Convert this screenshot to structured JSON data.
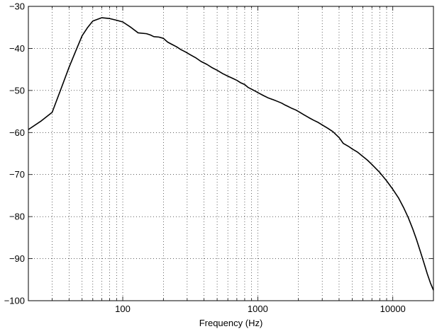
{
  "chart_data": {
    "type": "line",
    "title": "",
    "xlabel": "Frequency (Hz)",
    "ylabel": "",
    "x_scale": "log",
    "xlim": [
      20,
      20000
    ],
    "ylim": [
      -100,
      -30
    ],
    "grid": true,
    "legend": "none",
    "line_color": "#000000",
    "x_ticks": [
      100,
      1000,
      10000
    ],
    "x_tick_labels": [
      "100",
      "1000",
      "10000"
    ],
    "y_ticks": [
      -100,
      -90,
      -80,
      -70,
      -60,
      -50,
      -40,
      -30
    ],
    "y_tick_labels": [
      "−100",
      "−90",
      "−80",
      "−70",
      "−60",
      "−50",
      "−40",
      "−30"
    ],
    "series": [
      {
        "x": [
          20,
          25,
          30,
          35,
          40,
          45,
          50,
          55,
          60,
          70,
          80,
          90,
          100,
          115,
          130,
          150,
          160,
          170,
          185,
          200,
          215,
          230,
          250,
          270,
          290,
          320,
          350,
          380,
          420,
          460,
          500,
          550,
          600,
          650,
          700,
          750,
          800,
          850,
          900,
          950,
          1000,
          1100,
          1200,
          1300,
          1400,
          1500,
          1600,
          1700,
          1800,
          1900,
          2000,
          2200,
          2400,
          2600,
          2800,
          3000,
          3300,
          3600,
          4000,
          4300,
          4700,
          5000,
          5500,
          6000,
          6500,
          7000,
          8000,
          9000,
          10000,
          11000,
          12000,
          13000,
          14000,
          15000,
          16000,
          17000,
          18000,
          19000,
          20000
        ],
        "y": [
          -59.3,
          -57.2,
          -55.2,
          -49.5,
          -44.5,
          -40.5,
          -37.0,
          -35.0,
          -33.5,
          -32.7,
          -32.9,
          -33.3,
          -33.7,
          -35.0,
          -36.3,
          -36.5,
          -36.8,
          -37.2,
          -37.3,
          -37.6,
          -38.5,
          -39.0,
          -39.6,
          -40.3,
          -40.8,
          -41.6,
          -42.3,
          -43.1,
          -43.8,
          -44.6,
          -45.2,
          -46.0,
          -46.6,
          -47.1,
          -47.6,
          -48.2,
          -48.6,
          -49.3,
          -49.7,
          -50.1,
          -50.5,
          -51.2,
          -51.8,
          -52.2,
          -52.6,
          -53.0,
          -53.5,
          -53.9,
          -54.3,
          -54.6,
          -55.0,
          -55.8,
          -56.5,
          -57.1,
          -57.6,
          -58.2,
          -59.0,
          -59.8,
          -61.2,
          -62.6,
          -63.3,
          -63.9,
          -64.7,
          -65.7,
          -66.6,
          -67.6,
          -69.5,
          -71.5,
          -73.5,
          -75.5,
          -77.8,
          -80.2,
          -82.8,
          -85.5,
          -88.3,
          -91.0,
          -93.6,
          -95.8,
          -97.5
        ]
      }
    ]
  }
}
